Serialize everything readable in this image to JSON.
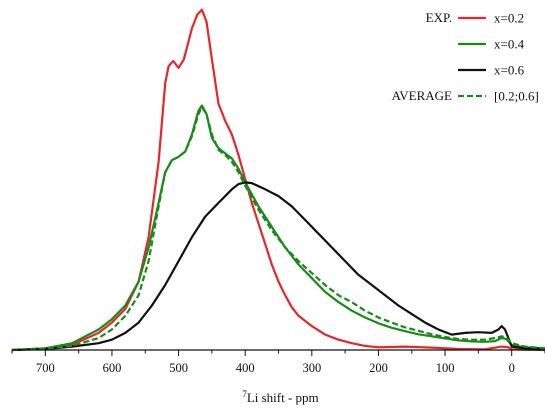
{
  "chart_data": {
    "type": "line",
    "title": "",
    "xlabel": {
      "superscript": "7",
      "text": "Li shift - ppm"
    },
    "ylabel": "",
    "xlim": [
      750,
      -50
    ],
    "ylim": [
      0,
      1.0
    ],
    "x_reversed": true,
    "y_ticks_shown": false,
    "grid": false,
    "x_ticks": [
      700,
      600,
      500,
      400,
      300,
      200,
      100,
      0
    ],
    "legend": {
      "position": "top-right",
      "group_labels": {
        "exp": "EXP.",
        "average": "AVERAGE"
      }
    },
    "series": [
      {
        "name": "x=0.2",
        "group": "exp",
        "color": "#e8262a",
        "dash": false,
        "points": [
          [
            750,
            0.0
          ],
          [
            700,
            0.005
          ],
          [
            660,
            0.015
          ],
          [
            620,
            0.05
          ],
          [
            600,
            0.08
          ],
          [
            580,
            0.12
          ],
          [
            560,
            0.2
          ],
          [
            545,
            0.33
          ],
          [
            530,
            0.55
          ],
          [
            520,
            0.78
          ],
          [
            515,
            0.83
          ],
          [
            508,
            0.845
          ],
          [
            500,
            0.825
          ],
          [
            492,
            0.85
          ],
          [
            480,
            0.94
          ],
          [
            472,
            0.98
          ],
          [
            465,
            0.995
          ],
          [
            458,
            0.96
          ],
          [
            450,
            0.85
          ],
          [
            440,
            0.72
          ],
          [
            430,
            0.67
          ],
          [
            420,
            0.63
          ],
          [
            410,
            0.57
          ],
          [
            400,
            0.5
          ],
          [
            390,
            0.43
          ],
          [
            380,
            0.37
          ],
          [
            370,
            0.31
          ],
          [
            360,
            0.25
          ],
          [
            350,
            0.2
          ],
          [
            340,
            0.16
          ],
          [
            330,
            0.125
          ],
          [
            320,
            0.1
          ],
          [
            300,
            0.07
          ],
          [
            280,
            0.045
          ],
          [
            260,
            0.03
          ],
          [
            240,
            0.02
          ],
          [
            220,
            0.012
          ],
          [
            200,
            0.008
          ],
          [
            160,
            0.01
          ],
          [
            120,
            0.007
          ],
          [
            80,
            0.003
          ],
          [
            40,
            0.002
          ],
          [
            15,
            0.01
          ],
          [
            5,
            0.008
          ],
          [
            0,
            0.002
          ],
          [
            -20,
            0.001
          ],
          [
            -50,
            0.0
          ]
        ]
      },
      {
        "name": "x=0.4",
        "group": "exp",
        "color": "#1a8a1a",
        "dash": false,
        "points": [
          [
            750,
            0.0
          ],
          [
            700,
            0.005
          ],
          [
            660,
            0.02
          ],
          [
            620,
            0.06
          ],
          [
            600,
            0.09
          ],
          [
            580,
            0.13
          ],
          [
            560,
            0.2
          ],
          [
            545,
            0.3
          ],
          [
            530,
            0.43
          ],
          [
            520,
            0.52
          ],
          [
            510,
            0.555
          ],
          [
            500,
            0.565
          ],
          [
            490,
            0.58
          ],
          [
            480,
            0.63
          ],
          [
            470,
            0.7
          ],
          [
            465,
            0.715
          ],
          [
            458,
            0.69
          ],
          [
            450,
            0.62
          ],
          [
            440,
            0.59
          ],
          [
            430,
            0.575
          ],
          [
            420,
            0.56
          ],
          [
            410,
            0.53
          ],
          [
            400,
            0.49
          ],
          [
            380,
            0.42
          ],
          [
            360,
            0.36
          ],
          [
            340,
            0.3
          ],
          [
            320,
            0.25
          ],
          [
            300,
            0.21
          ],
          [
            280,
            0.17
          ],
          [
            260,
            0.14
          ],
          [
            240,
            0.115
          ],
          [
            220,
            0.095
          ],
          [
            200,
            0.078
          ],
          [
            180,
            0.065
          ],
          [
            160,
            0.055
          ],
          [
            140,
            0.046
          ],
          [
            120,
            0.04
          ],
          [
            100,
            0.034
          ],
          [
            80,
            0.028
          ],
          [
            60,
            0.025
          ],
          [
            40,
            0.024
          ],
          [
            25,
            0.026
          ],
          [
            15,
            0.035
          ],
          [
            8,
            0.032
          ],
          [
            0,
            0.015
          ],
          [
            -20,
            0.008
          ],
          [
            -50,
            0.005
          ]
        ]
      },
      {
        "name": "x=0.6",
        "group": "exp",
        "color": "#111111",
        "dash": false,
        "points": [
          [
            750,
            0.0
          ],
          [
            700,
            0.003
          ],
          [
            660,
            0.01
          ],
          [
            620,
            0.02
          ],
          [
            600,
            0.03
          ],
          [
            580,
            0.05
          ],
          [
            560,
            0.08
          ],
          [
            540,
            0.13
          ],
          [
            520,
            0.19
          ],
          [
            500,
            0.26
          ],
          [
            480,
            0.33
          ],
          [
            460,
            0.39
          ],
          [
            440,
            0.43
          ],
          [
            420,
            0.47
          ],
          [
            410,
            0.485
          ],
          [
            400,
            0.49
          ],
          [
            390,
            0.488
          ],
          [
            370,
            0.47
          ],
          [
            350,
            0.45
          ],
          [
            330,
            0.42
          ],
          [
            310,
            0.38
          ],
          [
            290,
            0.34
          ],
          [
            270,
            0.3
          ],
          [
            250,
            0.26
          ],
          [
            230,
            0.22
          ],
          [
            210,
            0.19
          ],
          [
            190,
            0.16
          ],
          [
            170,
            0.13
          ],
          [
            150,
            0.105
          ],
          [
            130,
            0.08
          ],
          [
            110,
            0.06
          ],
          [
            90,
            0.045
          ],
          [
            70,
            0.05
          ],
          [
            50,
            0.052
          ],
          [
            30,
            0.05
          ],
          [
            20,
            0.06
          ],
          [
            15,
            0.07
          ],
          [
            10,
            0.06
          ],
          [
            5,
            0.035
          ],
          [
            0,
            0.01
          ],
          [
            -20,
            0.005
          ],
          [
            -50,
            0.003
          ]
        ]
      },
      {
        "name": "[0.2;0.6]",
        "group": "average",
        "color": "#1a8a1a",
        "dash": true,
        "points": [
          [
            750,
            0.0
          ],
          [
            700,
            0.004
          ],
          [
            660,
            0.012
          ],
          [
            620,
            0.035
          ],
          [
            600,
            0.06
          ],
          [
            580,
            0.1
          ],
          [
            560,
            0.16
          ],
          [
            545,
            0.26
          ],
          [
            530,
            0.42
          ],
          [
            520,
            0.52
          ],
          [
            510,
            0.555
          ],
          [
            500,
            0.565
          ],
          [
            490,
            0.58
          ],
          [
            480,
            0.625
          ],
          [
            470,
            0.69
          ],
          [
            465,
            0.71
          ],
          [
            458,
            0.69
          ],
          [
            450,
            0.63
          ],
          [
            440,
            0.585
          ],
          [
            430,
            0.57
          ],
          [
            420,
            0.55
          ],
          [
            410,
            0.52
          ],
          [
            400,
            0.48
          ],
          [
            380,
            0.41
          ],
          [
            360,
            0.35
          ],
          [
            340,
            0.3
          ],
          [
            320,
            0.26
          ],
          [
            300,
            0.225
          ],
          [
            280,
            0.19
          ],
          [
            260,
            0.16
          ],
          [
            240,
            0.14
          ],
          [
            220,
            0.115
          ],
          [
            200,
            0.095
          ],
          [
            180,
            0.08
          ],
          [
            160,
            0.066
          ],
          [
            140,
            0.056
          ],
          [
            120,
            0.046
          ],
          [
            100,
            0.038
          ],
          [
            80,
            0.032
          ],
          [
            60,
            0.03
          ],
          [
            40,
            0.03
          ],
          [
            25,
            0.035
          ],
          [
            15,
            0.04
          ],
          [
            8,
            0.036
          ],
          [
            0,
            0.02
          ],
          [
            -20,
            0.01
          ],
          [
            -50,
            0.005
          ]
        ]
      }
    ]
  }
}
